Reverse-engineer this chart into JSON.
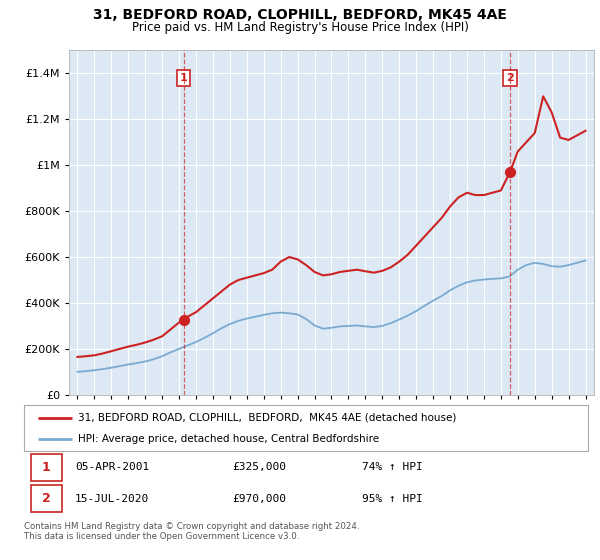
{
  "title": "31, BEDFORD ROAD, CLOPHILL, BEDFORD, MK45 4AE",
  "subtitle": "Price paid vs. HM Land Registry's House Price Index (HPI)",
  "legend_line1": "31, BEDFORD ROAD, CLOPHILL,  BEDFORD,  MK45 4AE (detached house)",
  "legend_line2": "HPI: Average price, detached house, Central Bedfordshire",
  "sale1_date": "05-APR-2001",
  "sale1_price": "£325,000",
  "sale1_pct": "74% ↑ HPI",
  "sale1_year": 2001.27,
  "sale1_value": 325000,
  "sale2_date": "15-JUL-2020",
  "sale2_price": "£970,000",
  "sale2_pct": "95% ↑ HPI",
  "sale2_year": 2020.54,
  "sale2_value": 970000,
  "red_line_color": "#cc2222",
  "blue_line_color": "#7aaad0",
  "chart_bg_color": "#dce9f5",
  "background_color": "#ffffff",
  "grid_color": "#ffffff",
  "footer": "Contains HM Land Registry data © Crown copyright and database right 2024.\nThis data is licensed under the Open Government Licence v3.0.",
  "ylim": [
    0,
    1500000
  ],
  "xlim": [
    1994.5,
    2025.5
  ],
  "red_years": [
    1995.0,
    1995.5,
    1996.0,
    1996.5,
    1997.0,
    1997.5,
    1998.0,
    1998.5,
    1999.0,
    1999.5,
    2000.0,
    2000.5,
    2001.0,
    2001.27,
    2001.5,
    2002.0,
    2002.5,
    2003.0,
    2003.5,
    2004.0,
    2004.5,
    2005.0,
    2005.5,
    2006.0,
    2006.5,
    2007.0,
    2007.5,
    2008.0,
    2008.5,
    2009.0,
    2009.5,
    2010.0,
    2010.5,
    2011.0,
    2011.5,
    2012.0,
    2012.5,
    2013.0,
    2013.5,
    2014.0,
    2014.5,
    2015.0,
    2015.5,
    2016.0,
    2016.5,
    2017.0,
    2017.5,
    2018.0,
    2018.5,
    2019.0,
    2019.5,
    2020.0,
    2020.54,
    2021.0,
    2021.5,
    2022.0,
    2022.5,
    2023.0,
    2023.5,
    2024.0,
    2024.5,
    2025.0
  ],
  "red_values": [
    165000,
    168000,
    172000,
    180000,
    190000,
    200000,
    210000,
    218000,
    228000,
    240000,
    255000,
    285000,
    315000,
    325000,
    340000,
    360000,
    390000,
    420000,
    450000,
    480000,
    500000,
    510000,
    520000,
    530000,
    545000,
    580000,
    600000,
    590000,
    565000,
    535000,
    520000,
    525000,
    535000,
    540000,
    545000,
    538000,
    532000,
    540000,
    555000,
    580000,
    610000,
    650000,
    690000,
    730000,
    770000,
    820000,
    860000,
    880000,
    870000,
    870000,
    880000,
    890000,
    970000,
    1060000,
    1100000,
    1140000,
    1300000,
    1230000,
    1120000,
    1110000,
    1130000,
    1150000
  ],
  "blue_years": [
    1995.0,
    1995.5,
    1996.0,
    1996.5,
    1997.0,
    1997.5,
    1998.0,
    1998.5,
    1999.0,
    1999.5,
    2000.0,
    2000.5,
    2001.0,
    2001.5,
    2002.0,
    2002.5,
    2003.0,
    2003.5,
    2004.0,
    2004.5,
    2005.0,
    2005.5,
    2006.0,
    2006.5,
    2007.0,
    2007.5,
    2008.0,
    2008.5,
    2009.0,
    2009.5,
    2010.0,
    2010.5,
    2011.0,
    2011.5,
    2012.0,
    2012.5,
    2013.0,
    2013.5,
    2014.0,
    2014.5,
    2015.0,
    2015.5,
    2016.0,
    2016.5,
    2017.0,
    2017.5,
    2018.0,
    2018.5,
    2019.0,
    2019.5,
    2020.0,
    2020.5,
    2021.0,
    2021.5,
    2022.0,
    2022.5,
    2023.0,
    2023.5,
    2024.0,
    2024.5,
    2025.0
  ],
  "blue_values": [
    100000,
    103000,
    107000,
    112000,
    118000,
    125000,
    132000,
    138000,
    145000,
    155000,
    168000,
    185000,
    200000,
    215000,
    230000,
    248000,
    268000,
    290000,
    308000,
    322000,
    332000,
    340000,
    348000,
    355000,
    358000,
    355000,
    350000,
    330000,
    302000,
    288000,
    292000,
    298000,
    300000,
    302000,
    298000,
    295000,
    300000,
    312000,
    328000,
    345000,
    365000,
    388000,
    410000,
    430000,
    455000,
    475000,
    490000,
    498000,
    502000,
    505000,
    507000,
    515000,
    545000,
    565000,
    575000,
    570000,
    560000,
    558000,
    565000,
    575000,
    585000
  ]
}
